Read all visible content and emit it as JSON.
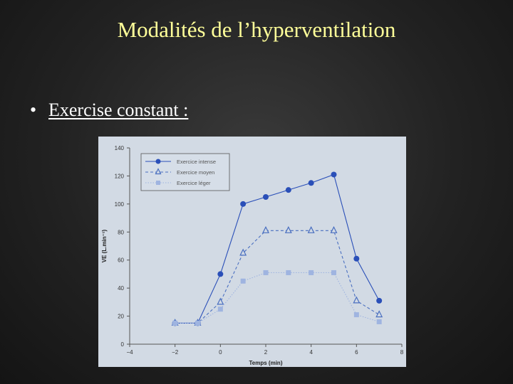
{
  "slide": {
    "title": "Modalités de l’hyperventilation",
    "bullet": "Exercise constant :"
  },
  "chart_data": {
    "type": "line",
    "xlabel": "Temps (min)",
    "ylabel": "VE (L.min⁻¹)",
    "xlim": [
      -4,
      8
    ],
    "ylim": [
      0,
      140
    ],
    "xticks": [
      -4,
      -2,
      0,
      2,
      4,
      6,
      8
    ],
    "yticks": [
      0,
      20,
      40,
      60,
      80,
      100,
      120,
      140
    ],
    "grid": false,
    "legend": "top-left",
    "series": [
      {
        "name": "Exercice intense",
        "marker": "circle",
        "line": "solid",
        "color": "#2a4fb8",
        "points": [
          [
            -2,
            15
          ],
          [
            -1,
            15
          ],
          [
            0,
            50
          ],
          [
            1,
            100
          ],
          [
            2,
            105
          ],
          [
            3,
            110
          ],
          [
            4,
            115
          ],
          [
            5,
            121
          ],
          [
            6,
            61
          ],
          [
            7,
            31
          ]
        ]
      },
      {
        "name": "Exercice moyen",
        "marker": "triangle",
        "line": "dashed",
        "color": "#4a6fc0",
        "points": [
          [
            -2,
            15
          ],
          [
            -1,
            15
          ],
          [
            0,
            30
          ],
          [
            1,
            65
          ],
          [
            2,
            81
          ],
          [
            3,
            81
          ],
          [
            4,
            81
          ],
          [
            5,
            81
          ],
          [
            6,
            31
          ],
          [
            7,
            21
          ]
        ]
      },
      {
        "name": "Exercice léger",
        "marker": "square",
        "line": "dotted",
        "color": "#9fb4e0",
        "points": [
          [
            -2,
            15
          ],
          [
            -1,
            15
          ],
          [
            0,
            25
          ],
          [
            1,
            45
          ],
          [
            2,
            51
          ],
          [
            3,
            51
          ],
          [
            4,
            51
          ],
          [
            5,
            51
          ],
          [
            6,
            21
          ],
          [
            7,
            16
          ]
        ]
      }
    ]
  }
}
